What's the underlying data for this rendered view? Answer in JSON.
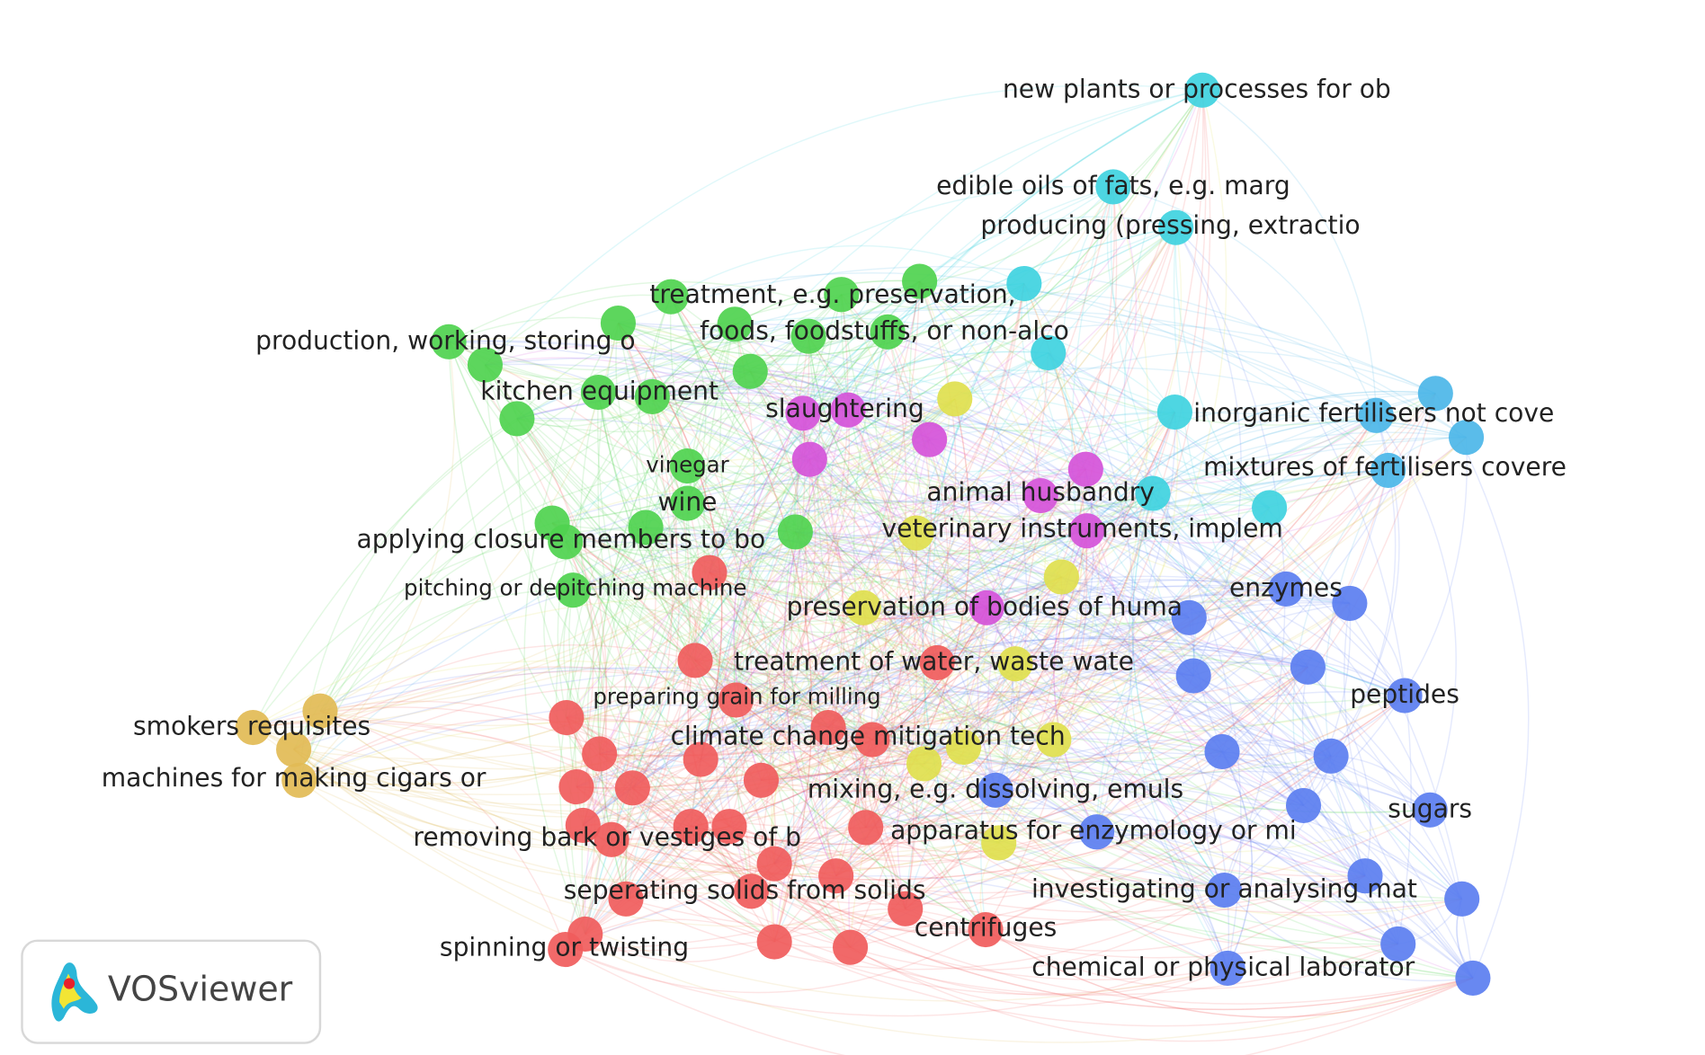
{
  "nodes": [
    {
      "label": "new plants or processes for ob"
    },
    {
      "label": "edible oils of fats, e.g. marg"
    },
    {
      "label": "producing (pressing, extractio"
    },
    {
      "label": "treatment, e.g. preservation,"
    },
    {
      "label": "foods, foodstuffs, or non-alco"
    },
    {
      "label": "production, working, storing o"
    },
    {
      "label": "kitchen equipment"
    },
    {
      "label": "slaughtering"
    },
    {
      "label": "inorganic fertilisers not cove"
    },
    {
      "label": "mixtures of fertilisers covere"
    },
    {
      "label": "vinegar"
    },
    {
      "label": "wine"
    },
    {
      "label": "animal husbandry"
    },
    {
      "label": "veterinary instruments, implem"
    },
    {
      "label": "applying closure members to bo"
    },
    {
      "label": "pitching or depitching machine"
    },
    {
      "label": "enzymes"
    },
    {
      "label": "preservation of bodies of huma"
    },
    {
      "label": "treatment of water, waste wate"
    },
    {
      "label": "preparing grain for milling"
    },
    {
      "label": "peptides"
    },
    {
      "label": "smokers requisites"
    },
    {
      "label": "climate change mitigation tech"
    },
    {
      "label": "machines for making cigars or"
    },
    {
      "label": "mixing, e.g. dissolving, emuls"
    },
    {
      "label": "sugars"
    },
    {
      "label": "apparatus for enzymology or mi"
    },
    {
      "label": "removing bark or vestiges of b"
    },
    {
      "label": "seperating solids from solids"
    },
    {
      "label": "investigating or analysing mat"
    },
    {
      "label": "centrifuges"
    },
    {
      "label": "spinning or twisting"
    },
    {
      "label": "chemical or physical laborator"
    }
  ],
  "logo": {
    "text": "VOSviewer"
  }
}
